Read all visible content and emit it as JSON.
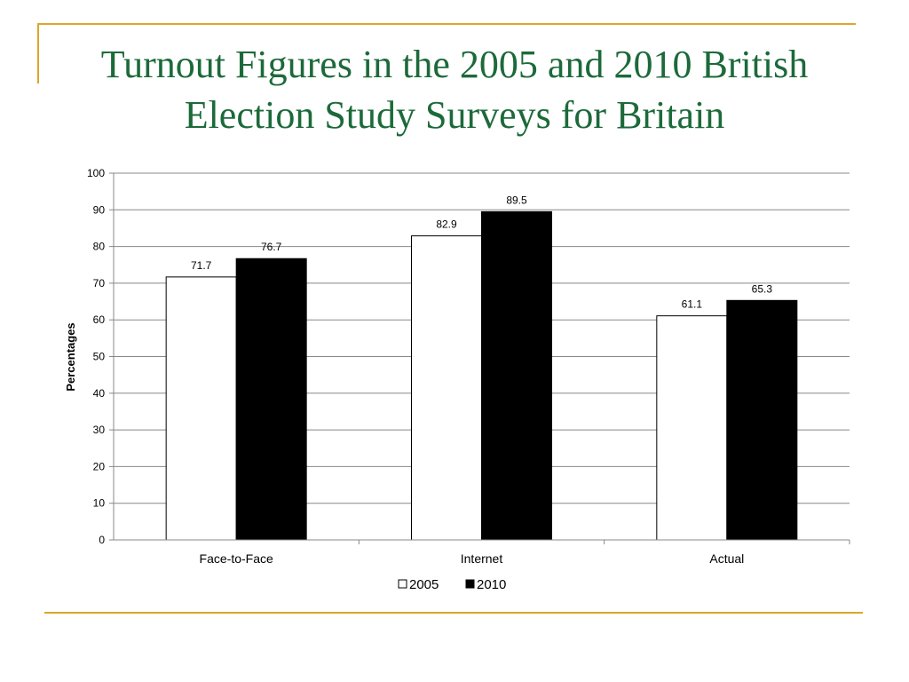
{
  "slide": {
    "title_line1": "Turnout Figures in the 2005 and 2010 British",
    "title_line2": "Election Study Surveys for Britain"
  },
  "colors": {
    "title": "#1c6a3a",
    "accent_rule": "#e0a526",
    "series_2005_fill": "#ffffff",
    "series_2010_fill": "#000000",
    "gridline": "#888888"
  },
  "chart_data": {
    "type": "bar",
    "title": "",
    "xlabel": "",
    "ylabel": "Percentages",
    "ylim": [
      0,
      100
    ],
    "yticks": [
      0,
      10,
      20,
      30,
      40,
      50,
      60,
      70,
      80,
      90,
      100
    ],
    "grid": true,
    "legend_position": "bottom",
    "categories": [
      "Face-to-Face",
      "Internet",
      "Actual"
    ],
    "series": [
      {
        "name": "2005",
        "values": [
          71.7,
          82.9,
          61.1
        ],
        "labels": [
          "71.7",
          "82.9",
          "61.1"
        ]
      },
      {
        "name": "2010",
        "values": [
          76.7,
          89.5,
          65.3
        ],
        "labels": [
          "76.7",
          "89.5",
          "65.3"
        ]
      }
    ]
  }
}
